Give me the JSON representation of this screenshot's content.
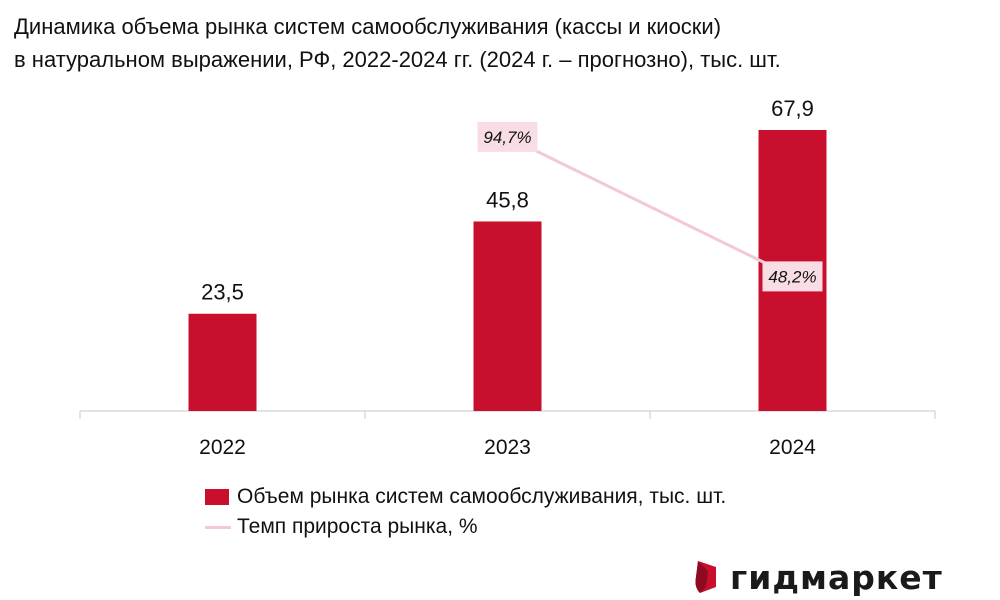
{
  "title_lines": [
    "Динамика объема рынка систем самообслуживания (кассы и киоски)",
    "в натуральном выражении, РФ, 2022-2024 гг. (2024 г. – прогнозно), тыс. шт."
  ],
  "colors": {
    "bar": "#c8102e",
    "growth_line": "#f2c9d4",
    "growth_label_bg": "#f9dde5",
    "axis": "#c8c8c8"
  },
  "chart_data": {
    "type": "bar",
    "categories": [
      "2022",
      "2023",
      "2024"
    ],
    "series": [
      {
        "name": "Объем рынка систем самообслуживания, тыс. шт.",
        "type": "bar",
        "values": [
          23.5,
          45.8,
          67.9
        ],
        "labels": [
          "23,5",
          "45,8",
          "67,9"
        ]
      },
      {
        "name": "Темп прироста рынка, %",
        "type": "line",
        "secondary_axis": true,
        "values": [
          null,
          94.7,
          48.2
        ],
        "labels": [
          "",
          "94,7%",
          "48,2%"
        ]
      }
    ],
    "ylim": [
      0,
      70
    ],
    "y2lim": [
      0,
      100
    ],
    "grid": false,
    "legend_position": "bottom"
  },
  "logo": {
    "text": "гидмаркет"
  }
}
